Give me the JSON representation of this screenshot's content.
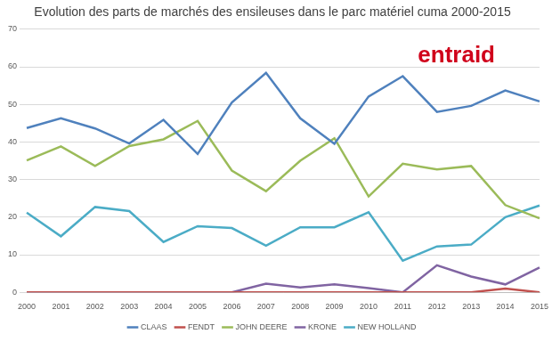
{
  "chart_data": {
    "type": "line",
    "title": "Evolution des parts de marchés des ensileuses dans le parc matériel cuma 2000-2015",
    "annotations": [
      "entraid"
    ],
    "categories": [
      "2000",
      "2001",
      "2002",
      "2003",
      "2004",
      "2005",
      "2006",
      "2007",
      "2008",
      "2009",
      "2010",
      "2011",
      "2012",
      "2013",
      "2014",
      "2015"
    ],
    "series": [
      {
        "name": "CLAAS",
        "color": "#4f81bd",
        "values": [
          43.7,
          46.3,
          43.6,
          39.6,
          45.9,
          36.8,
          50.5,
          58.4,
          46.3,
          39.5,
          52.1,
          57.5,
          48.0,
          49.6,
          53.7,
          50.8
        ]
      },
      {
        "name": "FENDT",
        "color": "#c0504d",
        "values": [
          0,
          0,
          0,
          0,
          0,
          0,
          0,
          0,
          0,
          0,
          0,
          0,
          0,
          0,
          1.0,
          0
        ]
      },
      {
        "name": "JOHN DEERE",
        "color": "#9bbb59",
        "values": [
          35.1,
          38.8,
          33.6,
          38.9,
          40.7,
          45.6,
          32.4,
          26.9,
          35.0,
          41.0,
          25.5,
          34.2,
          32.7,
          33.6,
          23.2,
          19.7
        ]
      },
      {
        "name": "KRONE",
        "color": "#8064a2",
        "values": [
          0,
          0,
          0,
          0,
          0,
          0,
          0,
          2.3,
          1.3,
          2.1,
          1.1,
          0,
          7.2,
          4.2,
          2.1,
          6.6
        ]
      },
      {
        "name": "NEW HOLLAND",
        "color": "#4bacc6",
        "values": [
          21.2,
          14.9,
          22.7,
          21.6,
          13.4,
          17.6,
          17.1,
          12.4,
          17.3,
          17.3,
          21.3,
          8.4,
          12.2,
          12.7,
          20.0,
          23.1
        ]
      }
    ],
    "ylim": [
      0,
      70
    ],
    "yticks": [
      0,
      10,
      20,
      30,
      40,
      50,
      60,
      70
    ],
    "grid": true,
    "legend": "bottom"
  }
}
